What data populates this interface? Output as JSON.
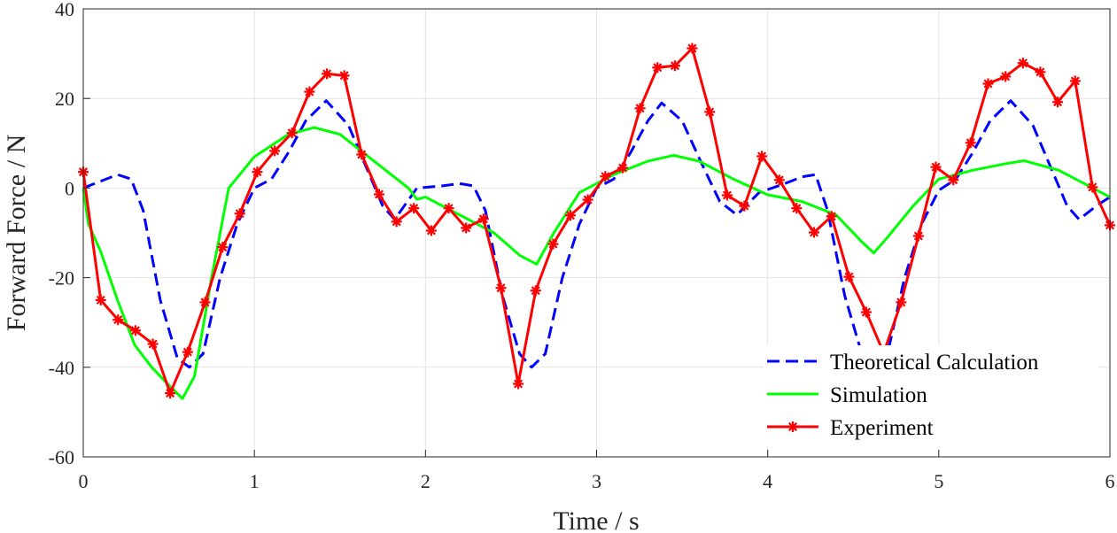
{
  "chart_data": {
    "type": "line",
    "xlabel": "Time / s",
    "ylabel": "Forward Force / N",
    "xlim": [
      0,
      6
    ],
    "ylim": [
      -60,
      40
    ],
    "xticks": [
      "0",
      "1",
      "2",
      "3",
      "4",
      "5",
      "6"
    ],
    "yticks": [
      "40",
      "20",
      "0",
      "-20",
      "-40",
      "-60"
    ],
    "grid": true,
    "legend_position": "bottom-right",
    "series": [
      {
        "name": "Theoretical Calculation",
        "color": "#0000ff",
        "style": "dashed",
        "x": [
          0,
          0.1,
          0.2,
          0.28,
          0.35,
          0.45,
          0.55,
          0.62,
          0.7,
          0.8,
          0.9,
          1.0,
          1.1,
          1.2,
          1.3,
          1.42,
          1.55,
          1.65,
          1.75,
          1.82,
          1.95,
          2.1,
          2.2,
          2.28,
          2.35,
          2.45,
          2.55,
          2.62,
          2.7,
          2.8,
          2.9,
          3.0,
          3.1,
          3.2,
          3.3,
          3.38,
          3.5,
          3.62,
          3.72,
          3.82,
          3.95,
          4.1,
          4.2,
          4.28,
          4.35,
          4.45,
          4.55,
          4.62,
          4.7,
          4.8,
          4.9,
          5.0,
          5.1,
          5.2,
          5.3,
          5.42,
          5.55,
          5.65,
          5.75,
          5.82,
          5.92,
          6.0
        ],
        "y": [
          0,
          1.5,
          3,
          2,
          -5,
          -25,
          -38,
          -40,
          -37,
          -20,
          -8,
          0,
          2,
          8,
          15,
          19.5,
          14,
          5,
          -4,
          -7,
          0,
          0.5,
          1,
          0.5,
          -5,
          -24,
          -37,
          -40,
          -37,
          -20,
          -8,
          0,
          2,
          8,
          15,
          19,
          15,
          5,
          -3,
          -6,
          -1,
          1,
          2.5,
          3,
          -5,
          -24,
          -37,
          -40,
          -37,
          -20,
          -8,
          -0.5,
          2,
          8,
          15,
          19.5,
          14,
          5,
          -4,
          -7,
          -4,
          -2
        ]
      },
      {
        "name": "Simulation",
        "color": "#00ff00",
        "style": "solid",
        "x": [
          0,
          0.03,
          0.1,
          0.2,
          0.3,
          0.4,
          0.5,
          0.58,
          0.65,
          0.75,
          0.85,
          1.0,
          1.2,
          1.35,
          1.5,
          1.7,
          1.9,
          1.95,
          2.0,
          2.2,
          2.4,
          2.55,
          2.65,
          2.75,
          2.9,
          3.1,
          3.3,
          3.45,
          3.6,
          3.8,
          4.0,
          4.2,
          4.4,
          4.55,
          4.62,
          4.7,
          4.85,
          5.0,
          5.2,
          5.4,
          5.5,
          5.7,
          6.0
        ],
        "y": [
          0,
          -8,
          -14,
          -25,
          -35,
          -40,
          -44,
          -47,
          -42,
          -20,
          0,
          7,
          12,
          13.5,
          12,
          6,
          0,
          -2.5,
          -2,
          -6,
          -10,
          -15,
          -17,
          -10,
          -1,
          3,
          6,
          7.3,
          6,
          2,
          -1.5,
          -3,
          -6,
          -12,
          -14.5,
          -11,
          -4,
          2,
          4,
          5.5,
          6.1,
          4,
          -2
        ]
      },
      {
        "name": "Experiment",
        "color": "#ff0000",
        "style": "solid-asterisk",
        "x": [
          0,
          0.102,
          0.203,
          0.305,
          0.407,
          0.508,
          0.61,
          0.712,
          0.814,
          0.915,
          1.017,
          1.119,
          1.22,
          1.322,
          1.424,
          1.525,
          1.627,
          1.729,
          1.831,
          1.932,
          2.034,
          2.136,
          2.237,
          2.339,
          2.441,
          2.542,
          2.644,
          2.746,
          2.847,
          2.949,
          3.051,
          3.153,
          3.254,
          3.356,
          3.458,
          3.559,
          3.661,
          3.763,
          3.864,
          3.966,
          4.068,
          4.169,
          4.271,
          4.373,
          4.475,
          4.576,
          4.678,
          4.78,
          4.881,
          4.983,
          5.085,
          5.186,
          5.288,
          5.39,
          5.492,
          5.593,
          5.695,
          5.797,
          5.898,
          6.0
        ],
        "y": [
          3.6,
          -25,
          -29.4,
          -31.8,
          -34.8,
          -45.8,
          -36.6,
          -25.5,
          -13.2,
          -5.7,
          3.6,
          8.3,
          12.3,
          21.5,
          25.5,
          25.1,
          7.5,
          -1.4,
          -7.5,
          -4.5,
          -9.5,
          -4.5,
          -8.9,
          -6.9,
          -22.3,
          -43.7,
          -22.9,
          -12.5,
          -6.1,
          -2.6,
          2.6,
          4.5,
          17.8,
          26.9,
          27.3,
          31.2,
          17,
          -1.6,
          -4,
          7.1,
          1.8,
          -4.5,
          -9.9,
          -6.3,
          -19.8,
          -27.7,
          -36.8,
          -25.5,
          -10.7,
          4.7,
          1.8,
          10.1,
          23.3,
          24.9,
          27.9,
          25.9,
          19.2,
          23.9,
          0.2,
          -8.3
        ]
      }
    ]
  }
}
